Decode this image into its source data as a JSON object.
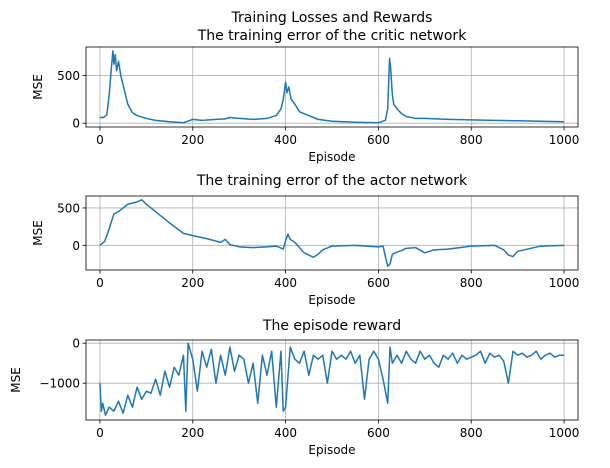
{
  "figure": {
    "suptitle": "Training Losses and Rewards"
  },
  "chart_data": [
    {
      "type": "line",
      "title": "The training error of the critic network",
      "xlabel": "Episode",
      "ylabel": "MSE",
      "xlim": [
        -30,
        1030
      ],
      "ylim": [
        -40,
        800
      ],
      "xticks": [
        0,
        200,
        400,
        600,
        800,
        1000
      ],
      "xtick_labels": [
        "0",
        "200",
        "400",
        "600",
        "800",
        "1000"
      ],
      "yticks": [
        0,
        500
      ],
      "ytick_labels": [
        "0",
        "500"
      ],
      "grid": true,
      "series": [
        {
          "color": "#1f77b4",
          "x": [
            0,
            8,
            15,
            20,
            25,
            28,
            30,
            33,
            36,
            40,
            45,
            50,
            55,
            60,
            70,
            80,
            100,
            120,
            150,
            180,
            200,
            220,
            250,
            270,
            280,
            300,
            330,
            360,
            380,
            390,
            395,
            400,
            403,
            407,
            412,
            420,
            430,
            450,
            470,
            500,
            550,
            600,
            615,
            620,
            624,
            626,
            630,
            633,
            640,
            650,
            660,
            680,
            700,
            750,
            800,
            850,
            900,
            950,
            1000
          ],
          "y": [
            60,
            60,
            90,
            300,
            600,
            760,
            620,
            720,
            550,
            650,
            500,
            400,
            300,
            200,
            110,
            80,
            50,
            30,
            15,
            5,
            40,
            30,
            40,
            45,
            60,
            50,
            40,
            50,
            80,
            150,
            250,
            430,
            320,
            380,
            250,
            200,
            120,
            80,
            40,
            20,
            10,
            5,
            30,
            150,
            680,
            600,
            300,
            200,
            150,
            100,
            70,
            50,
            50,
            40,
            35,
            30,
            25,
            20,
            15
          ]
        }
      ]
    },
    {
      "type": "line",
      "title": "The training error of the actor network",
      "xlabel": "Episode",
      "ylabel": "MSE",
      "xlim": [
        -30,
        1030
      ],
      "ylim": [
        -330,
        660
      ],
      "xticks": [
        0,
        200,
        400,
        600,
        800,
        1000
      ],
      "xtick_labels": [
        "0",
        "200",
        "400",
        "600",
        "800",
        "1000"
      ],
      "yticks": [
        0,
        500
      ],
      "ytick_labels": [
        "0",
        "500"
      ],
      "grid": true,
      "series": [
        {
          "color": "#1f77b4",
          "x": [
            0,
            10,
            20,
            30,
            40,
            60,
            80,
            90,
            100,
            120,
            150,
            180,
            200,
            230,
            260,
            270,
            280,
            300,
            330,
            360,
            380,
            395,
            400,
            405,
            410,
            420,
            440,
            460,
            470,
            480,
            500,
            550,
            600,
            610,
            615,
            620,
            625,
            630,
            640,
            650,
            660,
            680,
            700,
            720,
            750,
            800,
            850,
            870,
            880,
            890,
            900,
            950,
            1000
          ],
          "y": [
            0,
            50,
            220,
            420,
            450,
            550,
            580,
            610,
            550,
            450,
            300,
            160,
            130,
            90,
            40,
            80,
            10,
            -20,
            -30,
            -20,
            -10,
            -50,
            60,
            150,
            80,
            40,
            -100,
            -160,
            -120,
            -60,
            -10,
            0,
            -20,
            -10,
            -150,
            -280,
            -250,
            -120,
            -90,
            -70,
            -40,
            -30,
            -100,
            -60,
            -50,
            -10,
            0,
            -60,
            -130,
            -150,
            -80,
            -10,
            0
          ]
        }
      ]
    },
    {
      "type": "line",
      "title": "The episode reward",
      "xlabel": "Episode",
      "ylabel": "MSE",
      "xlim": [
        -30,
        1030
      ],
      "ylim": [
        -1920,
        80
      ],
      "xticks": [
        0,
        200,
        400,
        600,
        800,
        1000
      ],
      "xtick_labels": [
        "0",
        "200",
        "400",
        "600",
        "800",
        "1000"
      ],
      "yticks": [
        -1000,
        0
      ],
      "ytick_labels": [
        "−1000",
        "0"
      ],
      "grid": true,
      "series": [
        {
          "color": "#1f77b4",
          "x": [
            0,
            3,
            6,
            12,
            20,
            30,
            40,
            50,
            60,
            70,
            80,
            90,
            100,
            110,
            120,
            130,
            140,
            150,
            160,
            170,
            180,
            185,
            190,
            195,
            200,
            210,
            220,
            230,
            240,
            250,
            260,
            270,
            280,
            290,
            300,
            310,
            320,
            330,
            340,
            350,
            360,
            370,
            380,
            390,
            395,
            400,
            410,
            420,
            430,
            440,
            450,
            460,
            470,
            480,
            490,
            500,
            510,
            520,
            530,
            540,
            550,
            560,
            570,
            580,
            590,
            600,
            610,
            620,
            625,
            630,
            640,
            650,
            660,
            670,
            680,
            690,
            700,
            710,
            720,
            730,
            740,
            750,
            760,
            770,
            780,
            790,
            800,
            810,
            820,
            830,
            840,
            850,
            860,
            870,
            880,
            890,
            900,
            910,
            920,
            930,
            940,
            950,
            960,
            970,
            980,
            990,
            1000
          ],
          "y": [
            -1000,
            -1700,
            -1500,
            -1800,
            -1600,
            -1700,
            -1450,
            -1750,
            -1300,
            -1600,
            -1100,
            -1400,
            -1200,
            -1250,
            -900,
            -1300,
            -700,
            -1100,
            -600,
            -800,
            -300,
            -1700,
            0,
            -200,
            -400,
            -1200,
            -200,
            -600,
            -150,
            -1000,
            -300,
            -800,
            -100,
            -700,
            -300,
            -400,
            -1000,
            -500,
            -1500,
            -300,
            -800,
            -200,
            -1600,
            -200,
            -1700,
            -1600,
            -100,
            -400,
            -500,
            -200,
            -800,
            -300,
            -400,
            -300,
            -1000,
            -200,
            -400,
            -300,
            -400,
            -200,
            -500,
            -300,
            -1400,
            -400,
            -200,
            -400,
            -900,
            -1500,
            -100,
            -500,
            -300,
            -500,
            -200,
            -400,
            -500,
            -200,
            -400,
            -300,
            -500,
            -600,
            -300,
            -400,
            -250,
            -500,
            -300,
            -400,
            -350,
            -300,
            -200,
            -500,
            -250,
            -350,
            -300,
            -450,
            -1000,
            -200,
            -300,
            -250,
            -350,
            -300,
            -200,
            -400,
            -300,
            -250,
            -350,
            -300,
            -300
          ]
        }
      ]
    }
  ]
}
